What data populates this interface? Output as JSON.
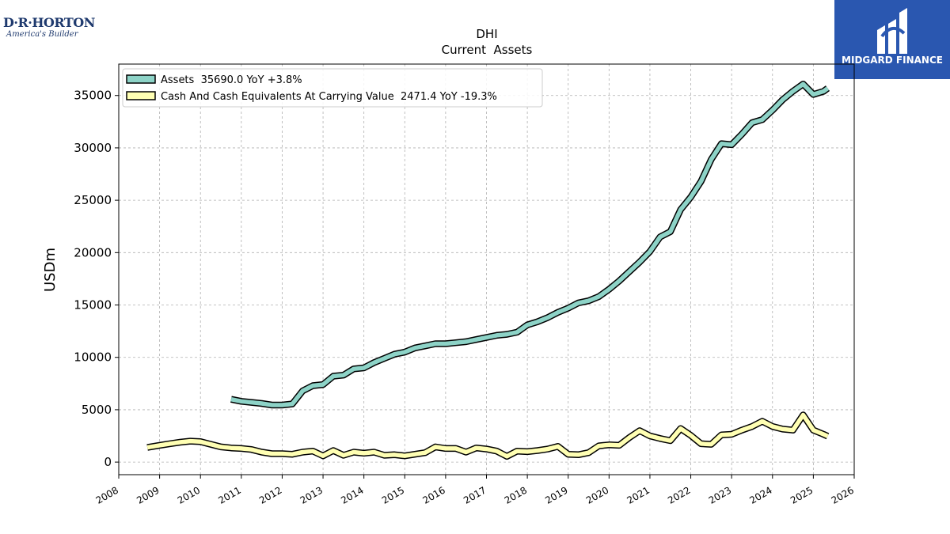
{
  "company_logo": {
    "brand": "D·R·HORTON",
    "tagline": "America's Builder"
  },
  "publisher_logo": {
    "name": "MIDGARD FINANCE"
  },
  "chart_data": {
    "type": "line",
    "title": "DHI",
    "subtitle": "Current  Assets",
    "ylabel": "USDm",
    "xlabel": "",
    "xlim": [
      2008,
      2026
    ],
    "ylim": [
      -1200,
      38000
    ],
    "xticks": [
      2008,
      2009,
      2010,
      2011,
      2012,
      2013,
      2014,
      2015,
      2016,
      2017,
      2018,
      2019,
      2020,
      2021,
      2022,
      2023,
      2024,
      2025,
      2026
    ],
    "yticks": [
      0,
      5000,
      10000,
      15000,
      20000,
      25000,
      30000,
      35000
    ],
    "grid": true,
    "legend_position": "top-left",
    "series": [
      {
        "name": "Assets  35690.0 YoY +3.8%",
        "color": "#8dd3c7",
        "x": [
          2010.75,
          2011.0,
          2011.25,
          2011.5,
          2011.75,
          2012.0,
          2012.25,
          2012.5,
          2012.75,
          2013.0,
          2013.25,
          2013.5,
          2013.75,
          2014.0,
          2014.25,
          2014.5,
          2014.75,
          2015.0,
          2015.25,
          2015.5,
          2015.75,
          2016.0,
          2016.25,
          2016.5,
          2016.75,
          2017.0,
          2017.25,
          2017.5,
          2017.75,
          2018.0,
          2018.25,
          2018.5,
          2018.75,
          2019.0,
          2019.25,
          2019.5,
          2019.75,
          2020.0,
          2020.25,
          2020.5,
          2020.75,
          2021.0,
          2021.25,
          2021.5,
          2021.75,
          2022.0,
          2022.25,
          2022.5,
          2022.75,
          2023.0,
          2023.25,
          2023.5,
          2023.75,
          2024.0,
          2024.25,
          2024.5,
          2024.75,
          2025.0,
          2025.25,
          2025.35
        ],
        "y": [
          6000,
          5800,
          5700,
          5600,
          5450,
          5450,
          5550,
          6800,
          7300,
          7400,
          8200,
          8300,
          8900,
          9000,
          9500,
          9900,
          10300,
          10500,
          10900,
          11100,
          11300,
          11300,
          11400,
          11500,
          11700,
          11900,
          12100,
          12200,
          12400,
          13100,
          13400,
          13800,
          14300,
          14700,
          15200,
          15400,
          15800,
          16500,
          17300,
          18200,
          19100,
          20100,
          21500,
          22000,
          24100,
          25300,
          26800,
          28900,
          30400,
          30300,
          31300,
          32400,
          32700,
          33600,
          34600,
          35400,
          36100,
          35100,
          35400,
          35690
        ]
      },
      {
        "name": "Cash And Cash Equivalents At Carrying Value  2471.4 YoY -19.3%",
        "color": "#ffffb3",
        "x": [
          2008.7,
          2009.0,
          2009.25,
          2009.5,
          2009.75,
          2010.0,
          2010.25,
          2010.5,
          2010.75,
          2011.0,
          2011.25,
          2011.5,
          2011.75,
          2012.0,
          2012.25,
          2012.5,
          2012.75,
          2013.0,
          2013.25,
          2013.5,
          2013.75,
          2014.0,
          2014.25,
          2014.5,
          2014.75,
          2015.0,
          2015.25,
          2015.5,
          2015.75,
          2016.0,
          2016.25,
          2016.5,
          2016.75,
          2017.0,
          2017.25,
          2017.5,
          2017.75,
          2018.0,
          2018.25,
          2018.5,
          2018.75,
          2019.0,
          2019.25,
          2019.5,
          2019.75,
          2020.0,
          2020.25,
          2020.5,
          2020.75,
          2021.0,
          2021.25,
          2021.5,
          2021.75,
          2022.0,
          2022.25,
          2022.5,
          2022.75,
          2023.0,
          2023.25,
          2023.5,
          2023.75,
          2024.0,
          2024.25,
          2024.5,
          2024.75,
          2025.0,
          2025.25,
          2025.35
        ],
        "y": [
          1400,
          1600,
          1750,
          1900,
          2000,
          1950,
          1700,
          1450,
          1350,
          1300,
          1200,
          950,
          800,
          800,
          750,
          950,
          1050,
          600,
          1100,
          650,
          950,
          850,
          950,
          650,
          700,
          600,
          750,
          900,
          1450,
          1300,
          1300,
          950,
          1350,
          1250,
          1050,
          550,
          1050,
          1000,
          1100,
          1250,
          1500,
          750,
          700,
          900,
          1550,
          1650,
          1600,
          2350,
          3000,
          2500,
          2250,
          2050,
          3200,
          2550,
          1750,
          1700,
          2600,
          2650,
          3050,
          3400,
          3900,
          3400,
          3150,
          3050,
          4500,
          3050,
          2650,
          2471
        ]
      }
    ]
  }
}
